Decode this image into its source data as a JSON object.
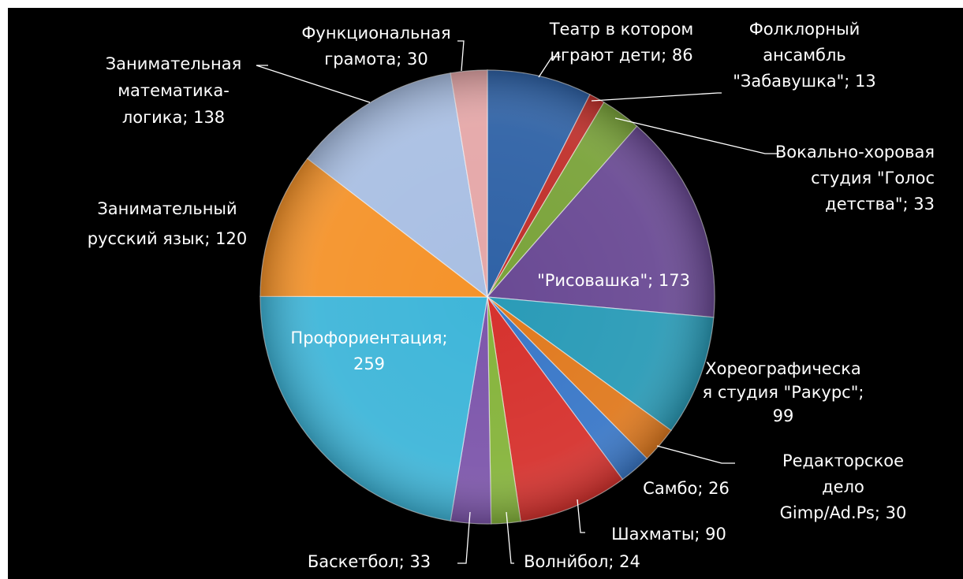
{
  "chart_data": {
    "type": "pie",
    "legend": "none",
    "slices": [
      {
        "label_lines": [
          "Театр в котором",
          "играют дети; 86"
        ],
        "value": 86,
        "color": "#2f62a6"
      },
      {
        "label_lines": [
          "Фолклорный",
          "ансамбль",
          "\"Забавушка\"; 13"
        ],
        "value": 13,
        "color": "#c0302b"
      },
      {
        "label_lines": [
          "Вокально-хоровая",
          "студия \"Голос",
          "детства\"; 33"
        ],
        "value": 33,
        "color": "#7aa33a"
      },
      {
        "label_lines": [
          "\"Рисовашка\"; 173"
        ],
        "value": 173,
        "color": "#6a4a94"
      },
      {
        "label_lines": [
          "Хореографическа",
          "я студия \"Ракурс\";",
          "99"
        ],
        "value": 99,
        "color": "#2a9bb7"
      },
      {
        "label_lines": [
          "Редакторское",
          "дело",
          "Gimp/Ad.Ps; 30"
        ],
        "value": 30,
        "color": "#e07a1f"
      },
      {
        "label_lines": [
          "Самбо; 26"
        ],
        "value": 26,
        "color": "#3a78c8"
      },
      {
        "label_lines": [
          "Шахматы; 90"
        ],
        "value": 90,
        "color": "#d6322e"
      },
      {
        "label_lines": [
          "Волнйбол; 24"
        ],
        "value": 24,
        "color": "#86b43c"
      },
      {
        "label_lines": [
          "Баскетбол; 33"
        ],
        "value": 33,
        "color": "#7d56ab"
      },
      {
        "label_lines": [
          "Профориентация;",
          "259"
        ],
        "value": 259,
        "color": "#3fb6d9"
      },
      {
        "label_lines": [
          "Занимательный",
          "русский язык; 120"
        ],
        "value": 120,
        "color": "#f5932a"
      },
      {
        "label_lines": [
          "Занимательная",
          "математика-",
          "логика; 138"
        ],
        "value": 138,
        "color": "#a9bfe3"
      },
      {
        "label_lines": [
          "Функциональная",
          "грамота; 30"
        ],
        "value": 30,
        "color": "#e5a7a8"
      }
    ]
  }
}
